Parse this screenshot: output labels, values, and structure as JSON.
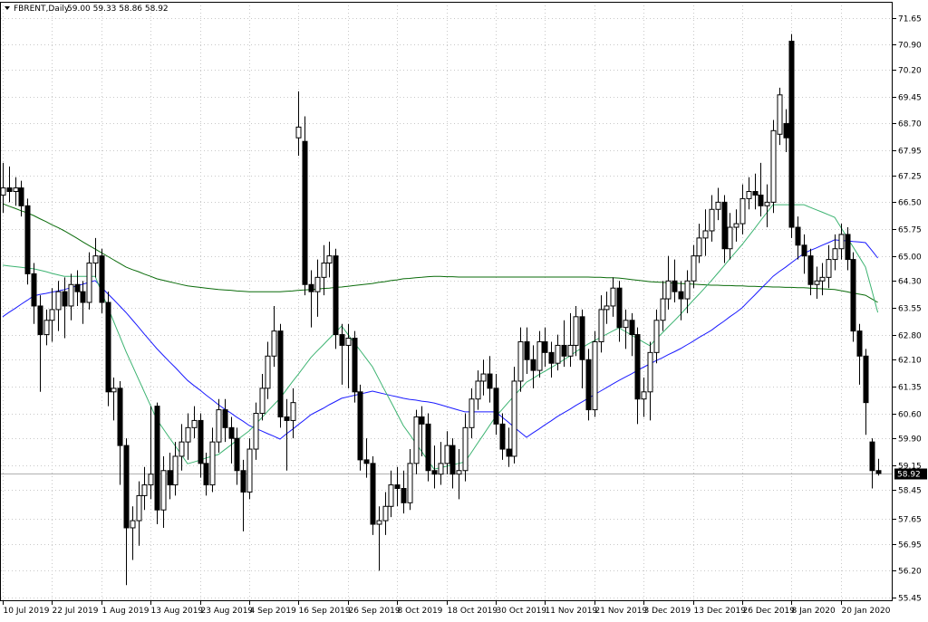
{
  "chart_data": {
    "type": "candlestick",
    "title": "FBRENT,Daily",
    "ohlc_label": "59.00 59.33 58.86 58.92",
    "up_color": "#ffffff",
    "down_color": "#000000",
    "grid": true,
    "ylim": [
      55.35,
      72.0
    ],
    "yticks": [
      {
        "value": 55.45,
        "label": "55.45"
      },
      {
        "value": 56.2,
        "label": "56.20"
      },
      56.95,
      57.65,
      58.45,
      59.15,
      {
        "value": 59.9,
        "label": "59.90"
      },
      {
        "value": 60.6,
        "label": "60.60"
      },
      61.35,
      {
        "value": 62.1,
        "label": "62.10"
      },
      {
        "value": 62.8,
        "label": "62.80"
      },
      63.55,
      {
        "value": 64.3,
        "label": "64.30"
      },
      {
        "value": 65.0,
        "label": "65.00"
      },
      65.75,
      {
        "value": 66.5,
        "label": "66.50"
      },
      67.25,
      67.95,
      {
        "value": 68.7,
        "label": "68.70"
      },
      69.45,
      {
        "value": 70.2,
        "label": "70.20"
      },
      {
        "value": 70.9,
        "label": "70.90"
      },
      71.65
    ],
    "categories": [
      "10 Jul 2019",
      null,
      null,
      null,
      null,
      null,
      null,
      null,
      "22 Jul 2019",
      null,
      null,
      null,
      null,
      null,
      null,
      null,
      "1 Aug 2019",
      null,
      null,
      null,
      null,
      null,
      null,
      null,
      "13 Aug 2019",
      null,
      null,
      null,
      null,
      null,
      null,
      null,
      "23 Aug 2019",
      null,
      null,
      null,
      null,
      null,
      null,
      null,
      "4 Sep 2019",
      null,
      null,
      null,
      null,
      null,
      null,
      null,
      "16 Sep 2019",
      null,
      null,
      null,
      null,
      null,
      null,
      null,
      "26 Sep 2019",
      null,
      null,
      null,
      null,
      null,
      null,
      null,
      "8 Oct 2019",
      null,
      null,
      null,
      null,
      null,
      null,
      null,
      "18 Oct 2019",
      null,
      null,
      null,
      null,
      null,
      null,
      null,
      "30 Oct 2019",
      null,
      null,
      null,
      null,
      null,
      null,
      null,
      "11 Nov 2019",
      null,
      null,
      null,
      null,
      null,
      null,
      null,
      "21 Nov 2019",
      null,
      null,
      null,
      null,
      null,
      null,
      null,
      "3 Dec 2019",
      null,
      null,
      null,
      null,
      null,
      null,
      null,
      "13 Dec 2019",
      null,
      null,
      null,
      null,
      null,
      null,
      null,
      "26 Dec 2019",
      null,
      null,
      null,
      null,
      null,
      null,
      null,
      "8 Jan 2020",
      null,
      null,
      null,
      null,
      null,
      null,
      null,
      "20 Jan 2020",
      null,
      null,
      null,
      null,
      null,
      null
    ],
    "open": [
      66.7,
      66.9,
      66.8,
      66.9,
      66.4,
      64.5,
      63.6,
      62.8,
      63.2,
      63.5,
      64.0,
      63.6,
      64.2,
      64.0,
      63.7,
      64.8,
      65.0,
      63.7,
      61.2,
      61.3,
      59.7,
      57.4,
      57.6,
      58.3,
      58.6,
      60.8,
      57.9,
      59.0,
      58.6,
      59.4,
      59.8,
      60.2,
      60.4,
      59.2,
      58.6,
      59.8,
      60.7,
      60.2,
      59.9,
      59.0,
      58.4,
      59.6,
      60.6,
      61.3,
      62.2,
      62.9,
      60.5,
      60.4,
      68.3,
      68.2,
      64.2,
      64.0,
      64.4,
      64.8,
      65.0,
      62.8,
      62.5,
      62.7,
      61.2,
      59.3,
      59.2,
      57.5,
      57.6,
      58.0,
      58.6,
      58.5,
      58.1,
      59.2,
      60.5,
      60.3,
      59.0,
      58.9,
      59.2,
      59.7,
      58.9,
      59.0,
      60.2,
      61.0,
      61.5,
      61.7,
      61.3,
      60.3,
      59.6,
      59.4,
      61.5,
      62.6,
      62.1,
      61.8,
      62.6,
      62.3,
      62.0,
      62.5,
      62.2,
      62.5,
      63.3,
      62.1,
      60.7,
      62.6,
      63.5,
      63.6,
      64.1,
      63.0,
      63.2,
      62.8,
      61.0,
      61.2,
      62.3,
      63.2,
      63.8,
      64.3,
      64.0,
      63.8,
      64.3,
      65.0,
      65.5,
      65.7,
      66.3,
      66.5,
      65.2,
      65.8,
      65.9,
      66.6,
      66.8,
      66.7,
      66.4,
      66.5,
      68.4,
      68.7,
      71.0,
      65.8,
      65.3,
      65.0,
      64.2,
      64.3,
      64.4,
      64.9,
      65.2,
      65.6,
      64.9,
      62.9,
      62.2,
      59.8,
      59.0
    ],
    "high": [
      67.6,
      67.5,
      67.2,
      67.1,
      66.6,
      64.8,
      63.9,
      63.5,
      64.1,
      64.3,
      64.4,
      64.5,
      64.6,
      64.3,
      65.1,
      65.5,
      65.2,
      64.0,
      61.6,
      61.5,
      59.9,
      58.0,
      58.7,
      59.1,
      60.8,
      60.9,
      59.4,
      59.5,
      59.8,
      60.3,
      60.6,
      60.8,
      60.6,
      59.5,
      60.2,
      61.0,
      61.0,
      60.5,
      60.2,
      59.3,
      59.9,
      60.9,
      61.7,
      62.6,
      63.6,
      63.1,
      61.0,
      61.3,
      69.6,
      68.9,
      64.6,
      64.9,
      65.3,
      65.4,
      65.2,
      63.1,
      63.1,
      62.9,
      61.4,
      59.9,
      59.4,
      58.0,
      58.4,
      59.0,
      59.1,
      59.0,
      59.6,
      60.7,
      60.8,
      60.6,
      59.7,
      59.8,
      60.1,
      59.9,
      59.6,
      60.6,
      61.3,
      61.8,
      62.1,
      62.2,
      61.7,
      60.6,
      60.2,
      61.9,
      63.0,
      63.0,
      62.5,
      62.9,
      63.0,
      62.6,
      62.8,
      63.2,
      63.4,
      63.6,
      63.5,
      62.4,
      62.9,
      63.9,
      64.0,
      64.4,
      64.3,
      63.5,
      63.4,
      63.0,
      61.6,
      62.6,
      63.5,
      64.3,
      65.0,
      64.9,
      64.3,
      64.6,
      65.3,
      65.9,
      66.3,
      66.7,
      66.9,
      66.7,
      66.2,
      66.3,
      67.0,
      67.2,
      67.3,
      67.6,
      67.0,
      68.8,
      69.7,
      69.1,
      71.2,
      66.1,
      65.6,
      65.2,
      64.7,
      64.8,
      65.3,
      65.6,
      65.9,
      65.8,
      65.1,
      63.1,
      62.4,
      59.9,
      59.33
    ],
    "low": [
      66.2,
      66.5,
      66.4,
      66.1,
      64.2,
      63.1,
      61.2,
      62.5,
      62.6,
      62.9,
      62.7,
      63.2,
      63.6,
      63.1,
      63.5,
      64.4,
      63.4,
      60.8,
      60.4,
      58.6,
      55.8,
      56.5,
      56.9,
      57.9,
      58.2,
      57.5,
      57.4,
      58.2,
      58.3,
      59.0,
      59.3,
      59.9,
      58.8,
      58.3,
      58.4,
      59.5,
      59.8,
      59.2,
      58.6,
      57.3,
      58.2,
      59.3,
      60.4,
      61.0,
      61.9,
      60.2,
      59.0,
      59.9,
      67.8,
      63.9,
      63.0,
      63.3,
      63.9,
      64.4,
      62.4,
      61.4,
      61.3,
      60.9,
      59.0,
      58.8,
      57.2,
      56.2,
      57.2,
      57.7,
      58.0,
      57.8,
      57.9,
      58.9,
      59.4,
      58.7,
      58.5,
      58.6,
      58.9,
      58.5,
      58.2,
      58.7,
      59.9,
      60.7,
      61.1,
      60.9,
      60.0,
      59.3,
      59.1,
      59.2,
      61.2,
      61.7,
      61.3,
      61.6,
      61.9,
      61.6,
      61.8,
      61.9,
      61.9,
      62.2,
      61.3,
      60.4,
      60.5,
      62.3,
      63.1,
      63.3,
      62.6,
      62.4,
      62.2,
      60.3,
      60.5,
      60.4,
      62.0,
      62.9,
      63.5,
      63.7,
      63.2,
      63.4,
      64.1,
      64.8,
      65.0,
      65.4,
      66.0,
      64.8,
      64.9,
      65.4,
      65.6,
      66.3,
      66.3,
      66.1,
      65.8,
      66.2,
      68.1,
      67.9,
      65.5,
      64.9,
      64.5,
      63.9,
      63.8,
      63.9,
      64.1,
      64.6,
      64.9,
      64.6,
      62.6,
      61.4,
      60.0,
      58.5,
      58.86
    ],
    "close": [
      66.9,
      66.8,
      66.9,
      66.4,
      64.5,
      63.6,
      62.8,
      63.2,
      63.5,
      64.0,
      63.6,
      64.2,
      64.0,
      63.7,
      64.8,
      65.0,
      63.7,
      61.2,
      61.3,
      59.7,
      57.4,
      57.6,
      58.3,
      58.6,
      58.9,
      57.9,
      59.0,
      58.6,
      59.4,
      59.8,
      60.2,
      60.4,
      59.2,
      58.6,
      59.8,
      60.7,
      60.2,
      59.9,
      59.0,
      58.4,
      59.6,
      60.6,
      61.3,
      62.2,
      62.9,
      60.5,
      60.4,
      60.9,
      68.6,
      64.2,
      64.0,
      64.4,
      64.8,
      65.0,
      62.8,
      62.5,
      62.7,
      61.2,
      59.3,
      59.2,
      57.5,
      57.6,
      58.0,
      58.6,
      58.5,
      58.1,
      59.2,
      60.5,
      60.3,
      59.0,
      58.9,
      59.2,
      59.7,
      58.9,
      59.0,
      60.2,
      61.0,
      61.5,
      61.7,
      61.3,
      60.3,
      59.6,
      59.4,
      61.5,
      62.6,
      62.1,
      61.8,
      62.6,
      62.3,
      62.0,
      62.5,
      62.2,
      62.5,
      63.3,
      62.1,
      60.7,
      62.6,
      63.5,
      63.6,
      64.1,
      63.0,
      63.2,
      62.8,
      61.0,
      61.2,
      62.3,
      63.2,
      63.8,
      64.3,
      64.0,
      63.8,
      64.3,
      65.0,
      65.5,
      65.7,
      66.3,
      66.5,
      65.2,
      65.8,
      65.9,
      66.6,
      66.8,
      66.7,
      66.4,
      66.5,
      68.5,
      69.5,
      68.3,
      65.8,
      65.3,
      65.0,
      64.2,
      64.3,
      64.4,
      64.9,
      65.2,
      65.6,
      64.9,
      62.9,
      62.2,
      60.9,
      59.0,
      58.92
    ],
    "lines": [
      {
        "color": "#0a6b0a",
        "values": [
          66.46,
          66.39,
          66.33,
          66.26,
          66.2,
          66.13,
          66.04,
          65.96,
          65.87,
          65.79,
          65.7,
          65.6,
          65.5,
          65.39,
          65.29,
          65.19,
          65.09,
          64.99,
          64.89,
          64.79,
          64.69,
          64.62,
          64.56,
          64.49,
          64.43,
          64.36,
          64.32,
          64.28,
          64.24,
          64.2,
          64.16,
          64.14,
          64.12,
          64.1,
          64.08,
          64.06,
          64.05,
          64.04,
          64.02,
          64.01,
          64.0,
          64.0,
          64.0,
          64.0,
          64.0,
          64.0,
          64.01,
          64.02,
          64.04,
          64.05,
          64.06,
          64.07,
          64.09,
          64.1,
          64.12,
          64.13,
          64.15,
          64.17,
          64.19,
          64.21,
          64.23,
          64.26,
          64.28,
          64.31,
          64.33,
          64.36,
          64.37,
          64.39,
          64.4,
          64.42,
          64.43,
          64.43,
          64.42,
          64.42,
          64.41,
          64.41,
          64.41,
          64.41,
          64.41,
          64.41,
          64.41,
          64.41,
          64.41,
          64.41,
          64.41,
          64.41,
          64.41,
          64.41,
          64.41,
          64.41,
          64.41,
          64.41,
          64.41,
          64.41,
          64.41,
          64.41,
          64.4,
          64.4,
          64.39,
          64.39,
          64.38,
          64.36,
          64.34,
          64.32,
          64.3,
          64.28,
          64.27,
          64.26,
          64.25,
          64.24,
          64.23,
          64.22,
          64.21,
          64.2,
          64.19,
          64.18,
          64.18,
          64.17,
          64.17,
          64.16,
          64.16,
          64.15,
          64.15,
          64.14,
          64.14,
          64.13,
          64.13,
          64.12,
          64.12,
          64.11,
          64.11,
          64.1,
          64.09,
          64.08,
          64.07,
          64.06,
          64.03,
          64.0,
          63.96,
          63.93,
          63.9,
          63.8,
          63.7
        ]
      },
      {
        "color": "#1a1aff",
        "values": [
          63.3,
          63.42,
          63.53,
          63.65,
          63.76,
          63.88,
          63.92,
          63.95,
          63.99,
          64.02,
          64.06,
          64.11,
          64.16,
          64.21,
          64.26,
          64.31,
          64.13,
          63.95,
          63.78,
          63.6,
          63.42,
          63.22,
          63.02,
          62.81,
          62.61,
          62.41,
          62.23,
          62.05,
          61.88,
          61.7,
          61.52,
          61.38,
          61.25,
          61.11,
          60.98,
          60.84,
          60.72,
          60.61,
          60.49,
          60.38,
          60.26,
          60.18,
          60.11,
          60.03,
          59.96,
          59.88,
          60.02,
          60.15,
          60.29,
          60.42,
          60.56,
          60.65,
          60.74,
          60.84,
          60.93,
          61.02,
          61.06,
          61.1,
          61.14,
          61.18,
          61.22,
          61.18,
          61.14,
          61.1,
          61.06,
          61.02,
          60.99,
          60.97,
          60.94,
          60.92,
          60.89,
          60.84,
          60.79,
          60.74,
          60.69,
          60.64,
          60.64,
          60.64,
          60.64,
          60.64,
          60.64,
          60.5,
          60.36,
          60.21,
          60.07,
          59.93,
          60.05,
          60.16,
          60.28,
          60.39,
          60.51,
          60.61,
          60.71,
          60.82,
          60.92,
          61.02,
          61.12,
          61.22,
          61.32,
          61.42,
          61.52,
          61.61,
          61.7,
          61.8,
          61.89,
          61.98,
          62.07,
          62.15,
          62.24,
          62.32,
          62.41,
          62.51,
          62.61,
          62.72,
          62.82,
          62.92,
          63.05,
          63.17,
          63.3,
          63.42,
          63.55,
          63.73,
          63.9,
          64.08,
          64.25,
          64.43,
          64.56,
          64.68,
          64.81,
          64.94,
          65.07,
          65.15,
          65.22,
          65.3,
          65.37,
          65.45,
          65.43,
          65.42,
          65.4,
          65.39,
          65.37,
          65.16,
          64.94
        ]
      },
      {
        "color": "#3cb371",
        "values": [
          64.74,
          64.72,
          64.7,
          64.68,
          64.66,
          64.64,
          64.6,
          64.56,
          64.51,
          64.47,
          64.43,
          64.43,
          64.43,
          64.43,
          64.43,
          64.43,
          64.01,
          63.59,
          63.17,
          62.75,
          62.33,
          61.95,
          61.57,
          61.19,
          60.81,
          60.43,
          60.18,
          59.93,
          59.69,
          59.44,
          59.19,
          59.24,
          59.29,
          59.35,
          59.4,
          59.45,
          59.58,
          59.71,
          59.85,
          59.98,
          60.11,
          60.29,
          60.47,
          60.66,
          60.84,
          61.02,
          61.25,
          61.48,
          61.7,
          61.93,
          62.16,
          62.34,
          62.51,
          62.69,
          62.86,
          63.04,
          62.81,
          62.58,
          62.36,
          62.13,
          61.9,
          61.57,
          61.24,
          60.92,
          60.59,
          60.26,
          60.02,
          59.77,
          59.53,
          59.28,
          59.04,
          59.08,
          59.12,
          59.16,
          59.2,
          59.24,
          59.49,
          59.75,
          60.0,
          60.26,
          60.51,
          60.7,
          60.9,
          61.09,
          61.28,
          61.47,
          61.57,
          61.68,
          61.78,
          61.88,
          61.98,
          62.09,
          62.2,
          62.32,
          62.43,
          62.54,
          62.63,
          62.72,
          62.81,
          62.9,
          62.99,
          62.89,
          62.79,
          62.69,
          62.59,
          62.49,
          62.67,
          62.84,
          63.02,
          63.19,
          63.37,
          63.56,
          63.75,
          63.93,
          64.12,
          64.31,
          64.51,
          64.71,
          64.92,
          65.12,
          65.32,
          65.54,
          65.76,
          65.99,
          66.21,
          66.43,
          66.43,
          66.43,
          66.43,
          66.43,
          66.43,
          66.36,
          66.29,
          66.22,
          66.15,
          66.08,
          65.8,
          65.52,
          65.25,
          64.97,
          64.69,
          64.06,
          63.42
        ]
      }
    ]
  }
}
